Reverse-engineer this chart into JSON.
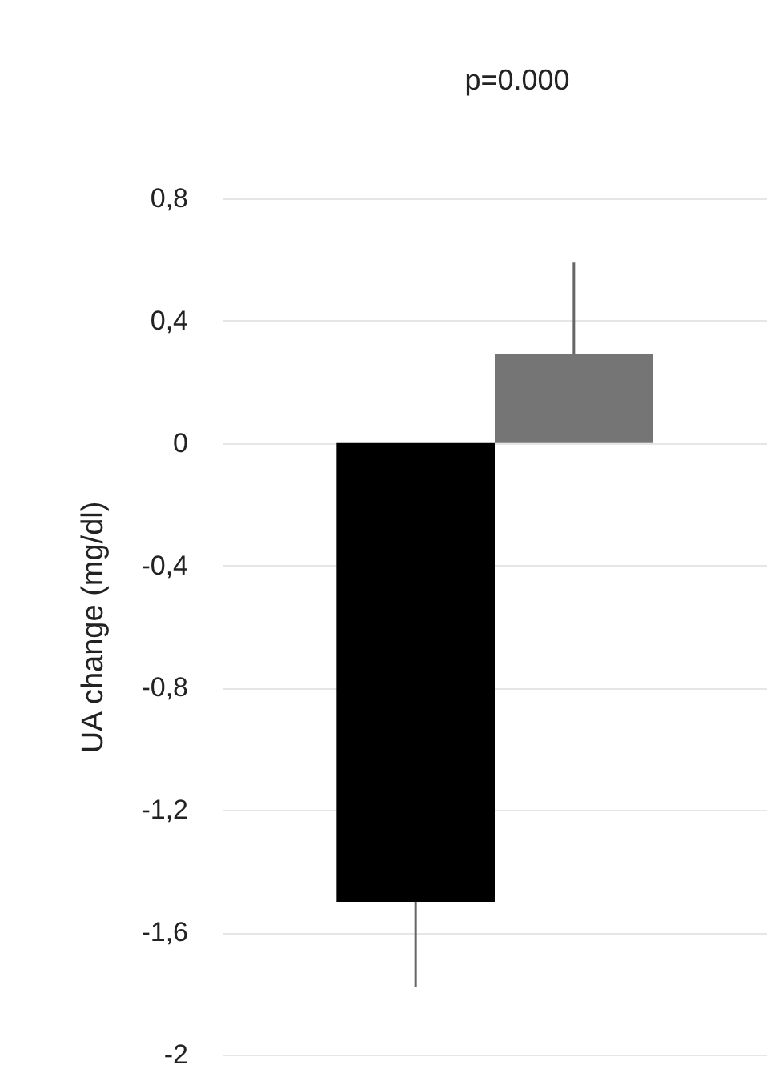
{
  "chart_data": {
    "type": "bar",
    "ylabel": "UA change (mg/dl)",
    "annotations": [
      "p=0.000"
    ],
    "categories": [
      null,
      null
    ],
    "values": [
      -1.5,
      0.29
    ],
    "colors": [
      "#000000",
      "#757575"
    ],
    "errors": [
      [
        -1.78,
        -1.5
      ],
      [
        0.29,
        0.59
      ]
    ],
    "ylim": [
      -2,
      0.8
    ],
    "yticks": [
      {
        "value": -2,
        "label": "-2"
      },
      {
        "value": -1.6,
        "label": "-1,6"
      },
      {
        "value": -1.2,
        "label": "-1,2"
      },
      {
        "value": -0.8,
        "label": "-0,8"
      },
      {
        "value": -0.4,
        "label": "-0,4"
      },
      {
        "value": 0,
        "label": "0"
      },
      {
        "value": 0.4,
        "label": "0,4"
      },
      {
        "value": 0.8,
        "label": "0,8"
      }
    ],
    "grid": "y",
    "tick_labels": "y",
    "legend": false
  }
}
